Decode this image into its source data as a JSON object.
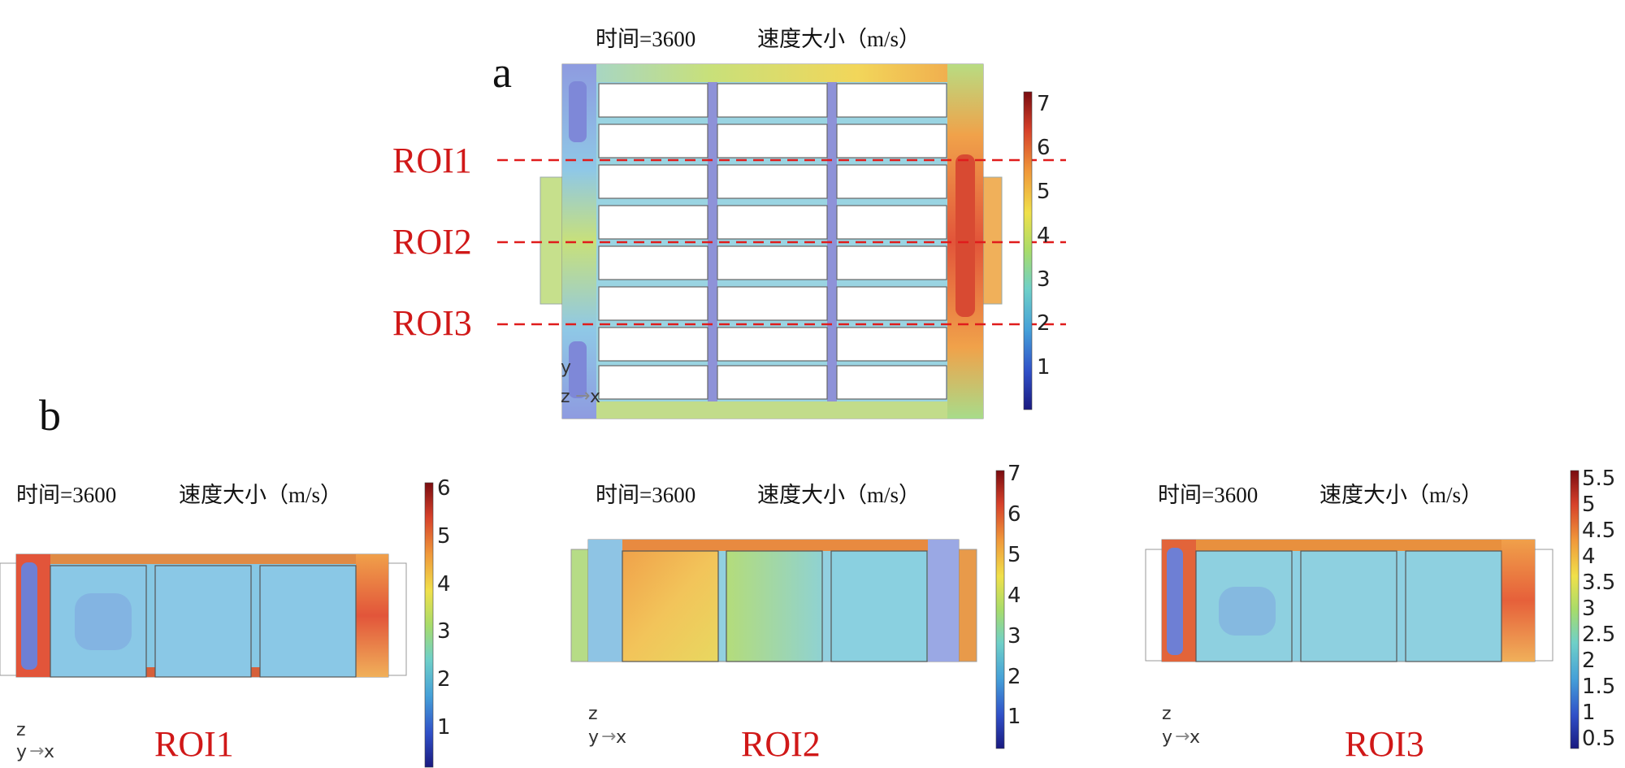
{
  "panel_a": {
    "letter": "a",
    "time_label": "时间=3600",
    "quantity_label": "速度大小（m/s）",
    "roi_labels": [
      "ROI1",
      "ROI2",
      "ROI3"
    ],
    "colorbar_ticks": [
      "7",
      "6",
      "5",
      "4",
      "3",
      "2",
      "1"
    ],
    "axes": {
      "up": "y",
      "origin": "z",
      "right": "x"
    }
  },
  "panel_b": {
    "letter": "b",
    "views": [
      {
        "time_label": "时间=3600",
        "quantity_label": "速度大小（m/s）",
        "caption": "ROI1",
        "colorbar_ticks": [
          "6",
          "5",
          "4",
          "3",
          "2",
          "1"
        ],
        "axes": {
          "up": "z",
          "origin": "y",
          "right": "x"
        }
      },
      {
        "time_label": "时间=3600",
        "quantity_label": "速度大小（m/s）",
        "caption": "ROI2",
        "colorbar_ticks": [
          "7",
          "6",
          "5",
          "4",
          "3",
          "2",
          "1"
        ],
        "axes": {
          "up": "z",
          "origin": "y",
          "right": "x"
        }
      },
      {
        "time_label": "时间=3600",
        "quantity_label": "速度大小（m/s）",
        "caption": "ROI3",
        "colorbar_ticks": [
          "5.5",
          "5",
          "4.5",
          "4",
          "3.5",
          "3",
          "2.5",
          "2",
          "1.5",
          "1",
          "0.5"
        ],
        "axes": {
          "up": "z",
          "origin": "y",
          "right": "x"
        }
      }
    ]
  },
  "colors": {
    "roi_red": "#d01818",
    "colormap": [
      "#1f1f8c",
      "#3b4cc0",
      "#45a0d8",
      "#72d0c8",
      "#a8dc6a",
      "#f4e04a",
      "#f09a3a",
      "#d8402a",
      "#8a0f12"
    ]
  }
}
